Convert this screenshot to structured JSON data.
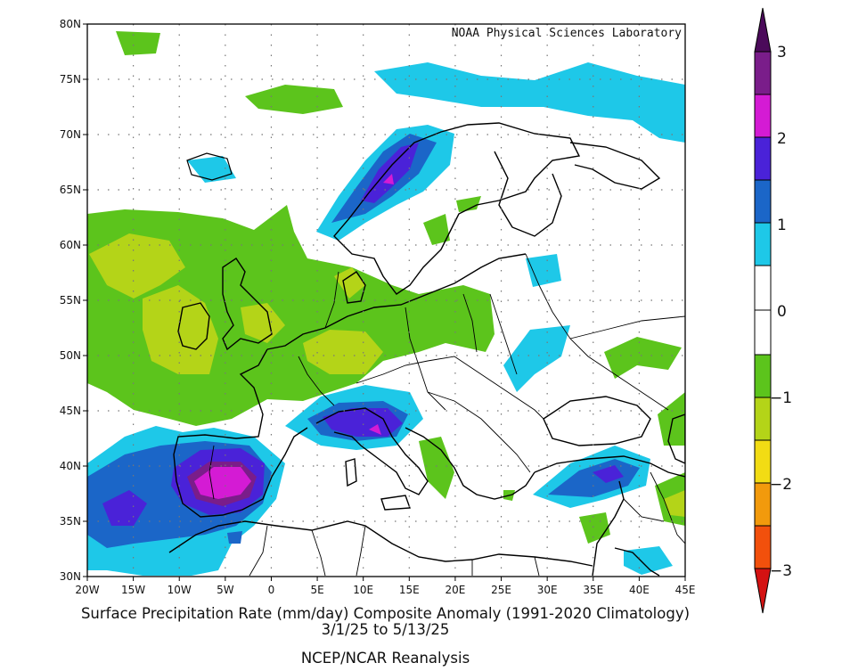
{
  "map": {
    "credit": "NOAA Physical Sciences Laboratory",
    "title": "Surface Precipitation Rate (mm/day) Composite Anomaly (1991-2020 Climatology)",
    "date_range": "3/1/25   to 5/13/25",
    "source": "NCEP/NCAR Reanalysis",
    "lat_labels": [
      "80N",
      "75N",
      "70N",
      "65N",
      "60N",
      "55N",
      "50N",
      "45N",
      "40N",
      "35N",
      "30N"
    ],
    "lon_labels": [
      "20W",
      "15W",
      "10W",
      "5W",
      "0",
      "5E",
      "10E",
      "15E",
      "20E",
      "25E",
      "30E",
      "35E",
      "40E",
      "45E"
    ]
  },
  "colorbar": {
    "labels": [
      "3",
      "2",
      "1",
      "0",
      "−1",
      "−2",
      "−3"
    ],
    "colors": {
      "gt3": "#4b0a5a",
      "2_3": "#7a1d8a",
      "2_2.5": "#d41bd4",
      "1.5_2": "#4a22d8",
      "1_1.5": "#1b66c8",
      "0.5_1": "#1ec8e8",
      "neutral": "#ffffff",
      "m0.5_m1": "#5cc41c",
      "m1_m1.5": "#b4d418",
      "m1.5_m2": "#f2dc14",
      "m2_m2.5": "#f29a0c",
      "m2.5_m3": "#f2500c",
      "lt_m3": "#d41212"
    }
  }
}
